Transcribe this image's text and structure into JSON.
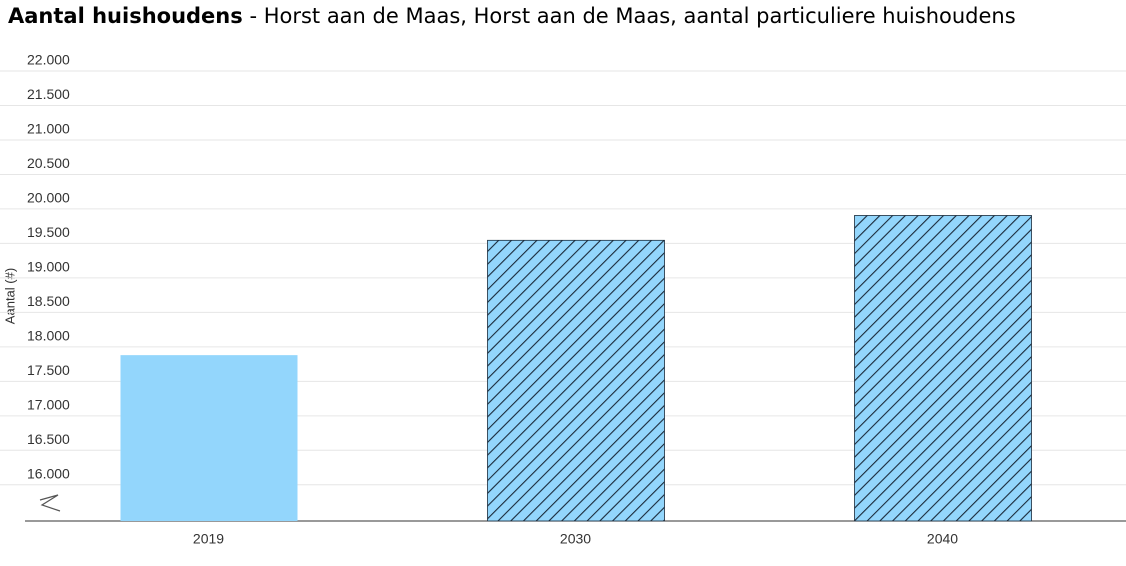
{
  "chart_data": {
    "type": "bar",
    "title": "Aantal huishoudens",
    "subtitle": "- Horst aan de Maas, Horst aan de Maas, aantal particuliere huishoudens",
    "y_label": "Aantal (#)",
    "categories": [
      "2019",
      "2030",
      "2040"
    ],
    "values": [
      17735,
      19400,
      19760
    ],
    "hatched": [
      false,
      true,
      true
    ],
    "color": "#93d6fc",
    "ylim": [
      15330,
      22000
    ],
    "yticks": [
      {
        "value": 16000,
        "label": "16.000"
      },
      {
        "value": 16500,
        "label": "16.500"
      },
      {
        "value": 17000,
        "label": "17.000"
      },
      {
        "value": 17500,
        "label": "17.500"
      },
      {
        "value": 18000,
        "label": "18.000"
      },
      {
        "value": 18500,
        "label": "18.500"
      },
      {
        "value": 19000,
        "label": "19.000"
      },
      {
        "value": 19500,
        "label": "19.500"
      },
      {
        "value": 20000,
        "label": "20.000"
      },
      {
        "value": 20500,
        "label": "20.500"
      },
      {
        "value": 21000,
        "label": "21.000"
      },
      {
        "value": 21500,
        "label": "21.500"
      },
      {
        "value": 22000,
        "label": "22.000"
      }
    ],
    "grid": true
  }
}
